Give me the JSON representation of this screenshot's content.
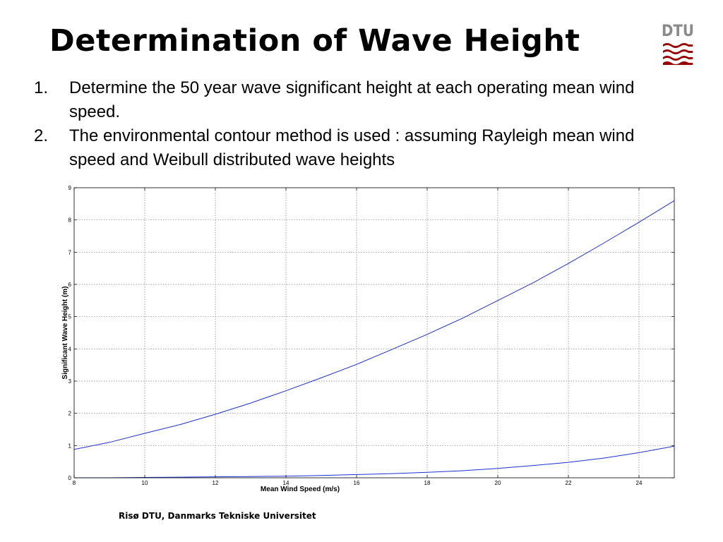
{
  "slide": {
    "title": "Determination of Wave Height",
    "logo_text": "DTU",
    "footer": "Risø DTU, Danmarks Tekniske Universitet"
  },
  "bullets": [
    {
      "number": "1.",
      "text": "Determine the 50 year wave significant height at each operating mean wind speed."
    },
    {
      "number": "2.",
      "text": "The environmental contour method is used : assuming Rayleigh mean wind speed and Weibull distributed wave heights"
    }
  ],
  "colors": {
    "line": "#1f2fd6",
    "grid": "#7f7f7f",
    "logo_red": "#990000",
    "logo_grey": "#8a8a8a"
  },
  "chart_data": {
    "type": "line",
    "title": "",
    "xlabel": "Mean Wind Speed (m/s)",
    "ylabel": "Significant Wave Height (m)",
    "xlim": [
      8,
      25
    ],
    "ylim": [
      0,
      9
    ],
    "xticks": [
      8,
      10,
      12,
      14,
      16,
      18,
      20,
      22,
      24
    ],
    "yticks": [
      0,
      1,
      2,
      3,
      4,
      5,
      6,
      7,
      8,
      9
    ],
    "grid": true,
    "x": [
      8,
      9,
      10,
      11,
      12,
      13,
      14,
      15,
      16,
      17,
      18,
      19,
      20,
      21,
      22,
      23,
      24,
      25
    ],
    "series": [
      {
        "values": [
          0.88,
          1.1,
          1.38,
          1.65,
          1.97,
          2.32,
          2.7,
          3.1,
          3.52,
          3.98,
          4.45,
          4.95,
          5.5,
          6.05,
          6.65,
          7.28,
          7.93,
          8.6
        ]
      },
      {
        "values": [
          0.0,
          0.0,
          0.01,
          0.02,
          0.03,
          0.04,
          0.05,
          0.07,
          0.1,
          0.13,
          0.17,
          0.22,
          0.29,
          0.38,
          0.48,
          0.61,
          0.78,
          0.98
        ]
      }
    ]
  }
}
